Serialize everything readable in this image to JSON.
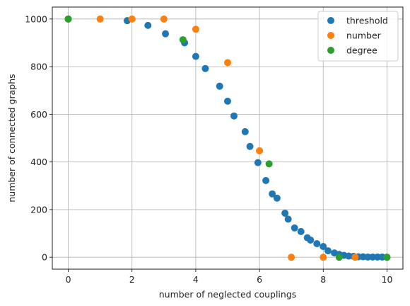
{
  "chart_data": {
    "type": "scatter",
    "title": "",
    "xlabel": "number of neglected couplings",
    "ylabel": "number of connected graphs",
    "xlim": [
      -0.5,
      10.5
    ],
    "ylim": [
      -50,
      1050
    ],
    "xticks": [
      0,
      2,
      4,
      6,
      8,
      10
    ],
    "yticks": [
      0,
      200,
      400,
      600,
      800,
      1000
    ],
    "grid": true,
    "legend_position": "top-right",
    "series": [
      {
        "name": "threshold",
        "color": "#1f77b4",
        "points": [
          [
            0,
            1000
          ],
          [
            1.85,
            993
          ],
          [
            2.5,
            973
          ],
          [
            3.05,
            938
          ],
          [
            3.65,
            900
          ],
          [
            4.0,
            843
          ],
          [
            4.3,
            792
          ],
          [
            4.75,
            718
          ],
          [
            5.0,
            655
          ],
          [
            5.2,
            593
          ],
          [
            5.55,
            527
          ],
          [
            5.7,
            465
          ],
          [
            5.95,
            397
          ],
          [
            6.2,
            322
          ],
          [
            6.4,
            266
          ],
          [
            6.55,
            248
          ],
          [
            6.8,
            185
          ],
          [
            6.9,
            160
          ],
          [
            7.1,
            123
          ],
          [
            7.3,
            108
          ],
          [
            7.5,
            82
          ],
          [
            7.6,
            72
          ],
          [
            7.8,
            57
          ],
          [
            8.0,
            45
          ],
          [
            8.15,
            27
          ],
          [
            8.35,
            18
          ],
          [
            8.5,
            12
          ],
          [
            8.65,
            8
          ],
          [
            8.8,
            5
          ],
          [
            8.95,
            4
          ],
          [
            9.1,
            2
          ],
          [
            9.25,
            2
          ],
          [
            9.4,
            1
          ],
          [
            9.55,
            1
          ],
          [
            9.7,
            1
          ],
          [
            9.85,
            1
          ],
          [
            10,
            0
          ]
        ]
      },
      {
        "name": "number",
        "color": "#ff7f0e",
        "points": [
          [
            0,
            1000
          ],
          [
            1,
            1000
          ],
          [
            2,
            1000
          ],
          [
            3,
            1000
          ],
          [
            4,
            957
          ],
          [
            5,
            817
          ],
          [
            6,
            447
          ],
          [
            7,
            0
          ],
          [
            8,
            0
          ],
          [
            9,
            0
          ],
          [
            10,
            0
          ]
        ]
      },
      {
        "name": "degree",
        "color": "#2ca02c",
        "points": [
          [
            0,
            1000
          ],
          [
            3.6,
            913
          ],
          [
            6.3,
            392
          ],
          [
            8.5,
            0
          ],
          [
            10,
            0
          ]
        ]
      }
    ]
  }
}
